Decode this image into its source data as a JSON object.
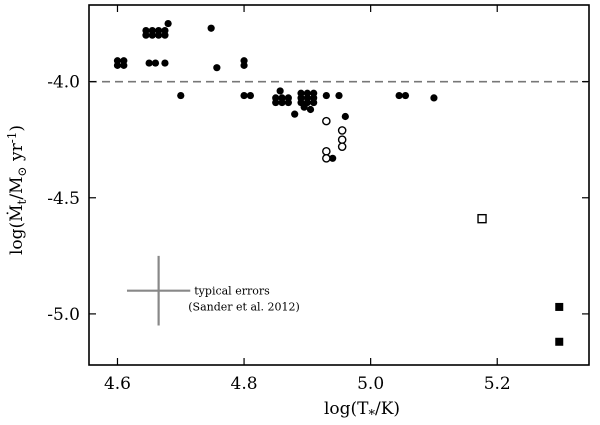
{
  "chart_data": {
    "type": "scatter",
    "xlabel": "log(T*/K)",
    "ylabel": "log(Mt/M⊙ yr⁻¹)",
    "xlim": [
      4.555,
      5.345
    ],
    "ylim": [
      -5.22,
      -3.67
    ],
    "xticks": [
      4.6,
      4.8,
      5.0,
      5.2
    ],
    "xtick_labels": [
      "4.6",
      "4.8",
      "5.0",
      "5.2"
    ],
    "yticks": [
      -4.0,
      -4.5,
      -5.0
    ],
    "ytick_labels": [
      "-4.0",
      "-4.5",
      "-5.0"
    ],
    "reference_line": {
      "y": -4.0,
      "style": "dashed",
      "color": "#777777"
    },
    "series": [
      {
        "marker": "filled-circle",
        "points": [
          [
            4.6,
            -3.91
          ],
          [
            4.61,
            -3.91
          ],
          [
            4.6,
            -3.93
          ],
          [
            4.61,
            -3.93
          ],
          [
            4.645,
            -3.78
          ],
          [
            4.655,
            -3.78
          ],
          [
            4.665,
            -3.78
          ],
          [
            4.675,
            -3.78
          ],
          [
            4.645,
            -3.8
          ],
          [
            4.655,
            -3.8
          ],
          [
            4.665,
            -3.8
          ],
          [
            4.675,
            -3.8
          ],
          [
            4.68,
            -3.75
          ],
          [
            4.748,
            -3.77
          ],
          [
            4.65,
            -3.92
          ],
          [
            4.66,
            -3.92
          ],
          [
            4.675,
            -3.92
          ],
          [
            4.7,
            -4.06
          ],
          [
            4.757,
            -3.94
          ],
          [
            4.8,
            -3.91
          ],
          [
            4.8,
            -3.93
          ],
          [
            4.8,
            -4.06
          ],
          [
            4.81,
            -4.06
          ],
          [
            4.85,
            -4.07
          ],
          [
            4.86,
            -4.07
          ],
          [
            4.87,
            -4.07
          ],
          [
            4.85,
            -4.09
          ],
          [
            4.86,
            -4.09
          ],
          [
            4.87,
            -4.09
          ],
          [
            4.857,
            -4.04
          ],
          [
            4.89,
            -4.07
          ],
          [
            4.9,
            -4.07
          ],
          [
            4.91,
            -4.07
          ],
          [
            4.89,
            -4.09
          ],
          [
            4.9,
            -4.09
          ],
          [
            4.91,
            -4.09
          ],
          [
            4.89,
            -4.05
          ],
          [
            4.9,
            -4.05
          ],
          [
            4.91,
            -4.05
          ],
          [
            4.88,
            -4.14
          ],
          [
            4.895,
            -4.11
          ],
          [
            4.905,
            -4.12
          ],
          [
            4.93,
            -4.06
          ],
          [
            4.95,
            -4.06
          ],
          [
            4.96,
            -4.15
          ],
          [
            4.94,
            -4.33
          ],
          [
            5.045,
            -4.06
          ],
          [
            5.055,
            -4.06
          ],
          [
            5.1,
            -4.07
          ]
        ]
      },
      {
        "marker": "open-circle",
        "points": [
          [
            4.93,
            -4.17
          ],
          [
            4.955,
            -4.21
          ],
          [
            4.955,
            -4.25
          ],
          [
            4.955,
            -4.28
          ],
          [
            4.93,
            -4.3
          ],
          [
            4.93,
            -4.33
          ]
        ]
      },
      {
        "marker": "open-square",
        "points": [
          [
            5.176,
            -4.59
          ]
        ]
      },
      {
        "marker": "filled-square",
        "points": [
          [
            5.298,
            -4.97
          ],
          [
            5.298,
            -5.12
          ]
        ]
      }
    ],
    "error_bar": {
      "x": 4.665,
      "y": -4.9,
      "x_err": 0.05,
      "y_err": 0.15,
      "color": "#888888",
      "label_line1": "typical errors",
      "label_line2": "(Sander et al. 2012)"
    }
  }
}
